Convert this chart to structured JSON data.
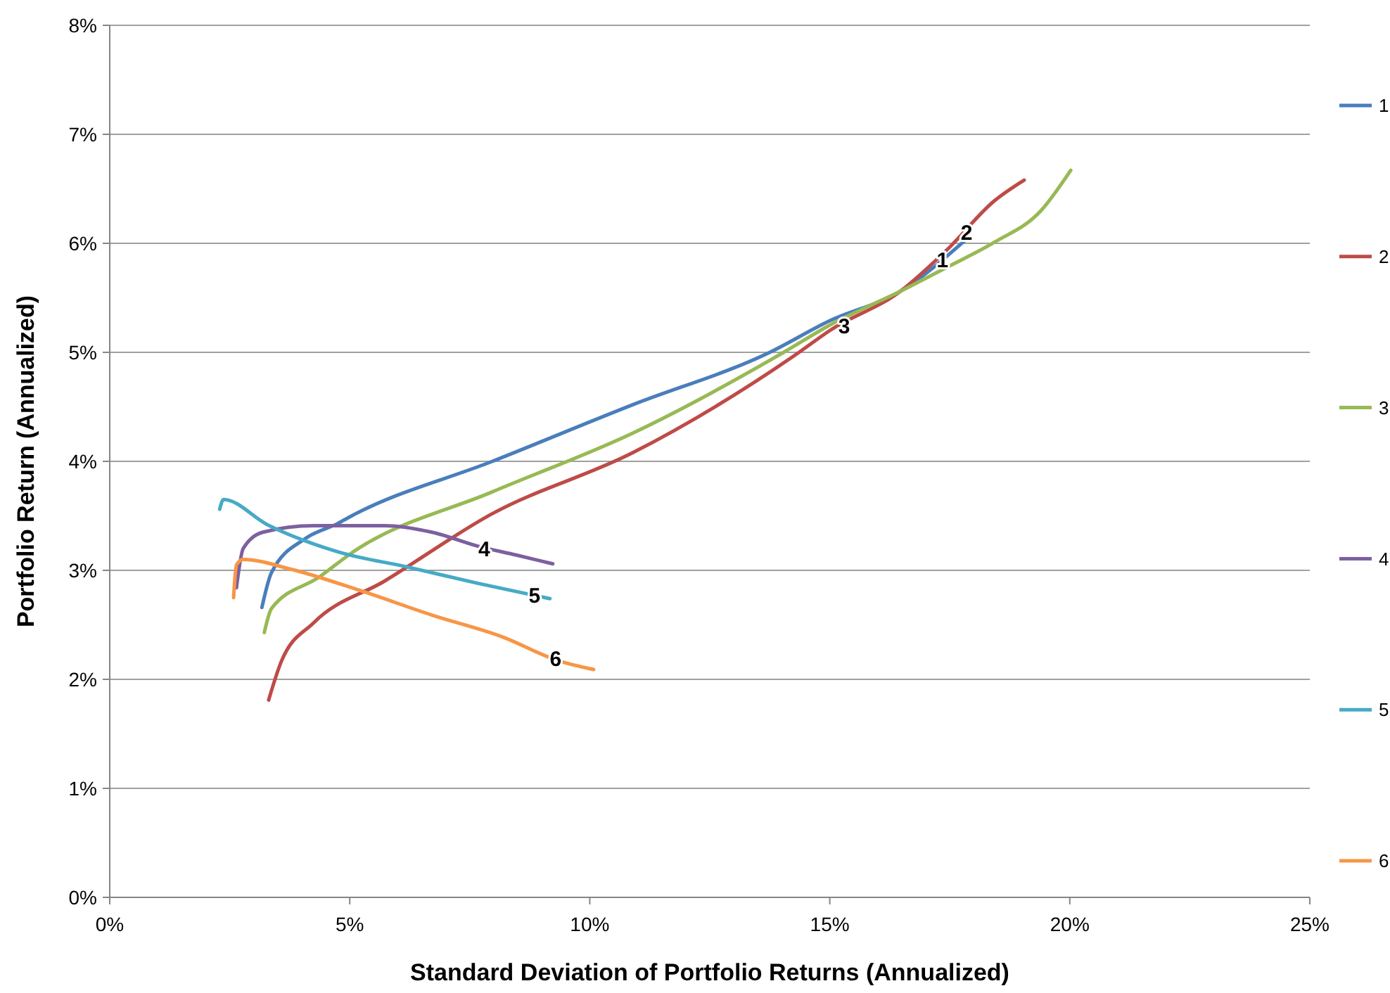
{
  "chart_data": {
    "type": "line",
    "xlabel": "Standard Deviation of Portfolio Returns (Annualized)",
    "ylabel": "Portfolio Return (Annualized)",
    "xlim": [
      0,
      25
    ],
    "ylim": [
      0,
      8
    ],
    "xticks": [
      {
        "value": 0,
        "label": "0%"
      },
      {
        "value": 5,
        "label": "5%"
      },
      {
        "value": 10,
        "label": "10%"
      },
      {
        "value": 15,
        "label": "15%"
      },
      {
        "value": 20,
        "label": "20%"
      },
      {
        "value": 25,
        "label": "25%"
      }
    ],
    "yticks": [
      {
        "value": 0,
        "label": "0%"
      },
      {
        "value": 1,
        "label": "1%"
      },
      {
        "value": 2,
        "label": "2%"
      },
      {
        "value": 3,
        "label": "3%"
      },
      {
        "value": 4,
        "label": "4%"
      },
      {
        "value": 5,
        "label": "5%"
      },
      {
        "value": 6,
        "label": "6%"
      },
      {
        "value": 7,
        "label": "7%"
      },
      {
        "value": 8,
        "label": "8%"
      }
    ],
    "grid": "y",
    "legend": "right",
    "marker": "none",
    "line_style": "solid",
    "series": [
      {
        "name": "1",
        "color": "#4a7ebb",
        "x": [
          3.17,
          3.37,
          4.07,
          4.75,
          5.04,
          7.97,
          10.9,
          13.75,
          15,
          16.47,
          17.85
        ],
        "values": [
          2.66,
          2.98,
          3.29,
          3.43,
          3.5,
          4.0,
          4.52,
          5.0,
          5.29,
          5.56,
          6.04
        ]
      },
      {
        "name": "2",
        "color": "#be4b48",
        "x": [
          3.31,
          3.58,
          4.25,
          5.72,
          7.97,
          10.9,
          14.36,
          15,
          16.47,
          17.44,
          18.43,
          19.05
        ],
        "values": [
          1.81,
          2.17,
          2.52,
          2.9,
          3.52,
          4.08,
          5.0,
          5.2,
          5.56,
          5.94,
          6.39,
          6.58
        ]
      },
      {
        "name": "3",
        "color": "#98b954",
        "x": [
          3.22,
          3.37,
          4.37,
          5.04,
          7.97,
          10.9,
          14.04,
          15,
          16.47,
          17.44,
          18.43,
          19.4,
          20.02
        ],
        "values": [
          2.43,
          2.65,
          2.94,
          3.16,
          3.72,
          4.26,
          5.0,
          5.25,
          5.56,
          5.78,
          6.01,
          6.3,
          6.67
        ]
      },
      {
        "name": "4",
        "color": "#7d60a0",
        "x": [
          2.64,
          2.78,
          3.19,
          4.25,
          5.72,
          6.71,
          7.68,
          8.47,
          9.23
        ],
        "values": [
          2.84,
          3.2,
          3.35,
          3.41,
          3.41,
          3.35,
          3.22,
          3.14,
          3.06
        ]
      },
      {
        "name": "5",
        "color": "#46aac5",
        "x": [
          2.29,
          2.37,
          3.28,
          4.75,
          6.21,
          7.68,
          9.17
        ],
        "values": [
          3.56,
          3.65,
          3.42,
          3.17,
          3.03,
          2.88,
          2.74
        ]
      },
      {
        "name": "6",
        "color": "#f79646",
        "x": [
          2.58,
          2.64,
          2.78,
          3.78,
          5.25,
          6.71,
          8.18,
          9.35,
          10.08
        ],
        "values": [
          2.75,
          3.05,
          3.1,
          3.01,
          2.81,
          2.59,
          2.39,
          2.17,
          2.09
        ]
      }
    ],
    "annotations": [
      {
        "text": "1",
        "x": 17.35,
        "y": 5.85
      },
      {
        "text": "2",
        "x": 17.85,
        "y": 6.1
      },
      {
        "text": "3",
        "x": 15.3,
        "y": 5.24
      },
      {
        "text": "4",
        "x": 7.8,
        "y": 3.2
      },
      {
        "text": "5",
        "x": 8.85,
        "y": 2.77
      },
      {
        "text": "6",
        "x": 9.29,
        "y": 2.19
      }
    ]
  }
}
